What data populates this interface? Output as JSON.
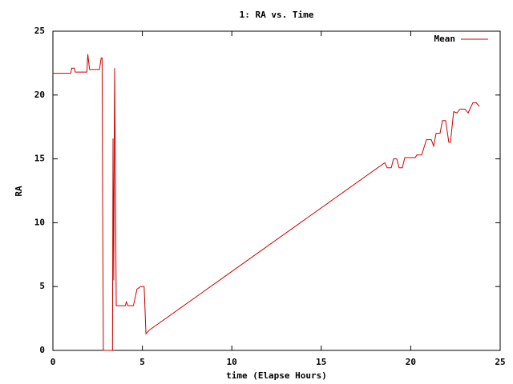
{
  "chart_data": {
    "type": "line",
    "title": "1: RA vs. Time",
    "x_label": "time (Elapse Hours)",
    "y_label": "RA",
    "x": [
      0,
      1.0,
      1.05,
      1.2,
      1.25,
      1.9,
      1.95,
      2.05,
      2.6,
      2.7,
      2.75,
      2.78,
      2.82,
      2.85,
      3.33,
      3.36,
      3.4,
      3.45,
      3.5,
      3.54,
      3.58,
      4.05,
      4.1,
      4.2,
      4.5,
      4.7,
      4.9,
      5.1,
      5.2,
      5.4,
      18.55,
      18.68,
      18.91,
      19.04,
      19.22,
      19.35,
      19.53,
      19.67,
      20.25,
      20.34,
      20.61,
      20.88,
      21.15,
      21.28,
      21.42,
      21.64,
      21.77,
      21.95,
      22.13,
      22.22,
      22.4,
      22.58,
      22.76,
      23.03,
      23.21,
      23.34,
      23.48,
      23.66,
      23.84
    ],
    "series": [
      {
        "name": "Mean",
        "color": "#cc0000",
        "values": [
          21.7,
          21.7,
          22.1,
          22.1,
          21.8,
          21.8,
          23.2,
          22.0,
          22.0,
          22.9,
          22.9,
          11.5,
          0,
          0,
          0,
          16.6,
          5.5,
          22.1,
          12.8,
          3.5,
          3.5,
          3.5,
          3.8,
          3.5,
          3.5,
          4.8,
          5.0,
          5.0,
          1.3,
          1.6,
          14.7,
          14.3,
          14.3,
          15.0,
          15.0,
          14.3,
          14.3,
          15.1,
          15.1,
          15.3,
          15.3,
          16.5,
          16.5,
          16.0,
          17.0,
          17.0,
          18.0,
          18.0,
          16.3,
          16.3,
          18.7,
          18.6,
          18.9,
          18.9,
          18.6,
          19.0,
          19.4,
          19.4,
          19.1
        ]
      }
    ],
    "xlim": [
      0,
      25
    ],
    "ylim": [
      0,
      25
    ],
    "xticks": [
      0,
      5,
      10,
      15,
      20,
      25
    ],
    "yticks": [
      0,
      5,
      10,
      15,
      20,
      25
    ],
    "legend": "top-right"
  }
}
